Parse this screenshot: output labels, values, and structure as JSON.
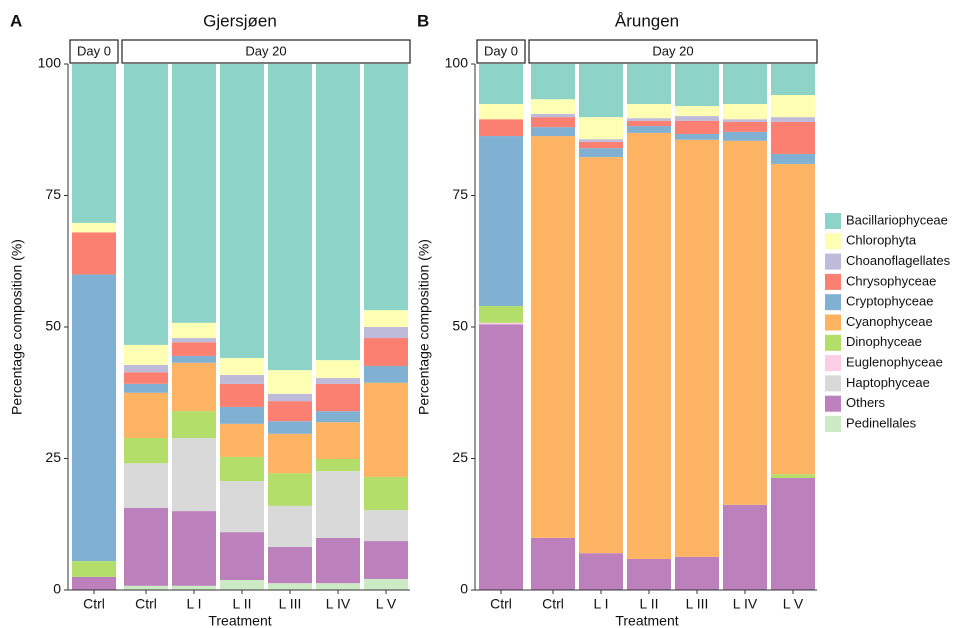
{
  "chart_data": [
    {
      "type": "bar",
      "stacked": true,
      "panel": "A",
      "title": "Gjersjøen",
      "xlabel": "Treatment",
      "ylabel": "Percentage composition (%)",
      "categories": [
        "Ctrl",
        "Ctrl",
        "L I",
        "L II",
        "L III",
        "L IV",
        "L V"
      ],
      "facets": [
        {
          "label": "Day 0",
          "count": 1
        },
        {
          "label": "Day 20",
          "count": 6
        }
      ],
      "ylim": [
        0,
        100
      ],
      "yticks": [
        0,
        25,
        50,
        75,
        100
      ],
      "legend": "none",
      "series": [
        {
          "name": "Bacillariophyceae",
          "color": "#8dd3c7",
          "values": [
            30.2,
            53.4,
            49.2,
            55.9,
            58.2,
            56.3,
            46.8
          ]
        },
        {
          "name": "Chlorophyta",
          "color": "#ffffb3",
          "values": [
            1.8,
            3.8,
            2.9,
            3.2,
            4.5,
            3.4,
            3.2
          ]
        },
        {
          "name": "Choanoflagellates",
          "color": "#bebada",
          "values": [
            0,
            1.4,
            0.8,
            1.7,
            1.4,
            1.1,
            2.1
          ]
        },
        {
          "name": "Chrysophyceae",
          "color": "#fb8072",
          "values": [
            8,
            2.2,
            2.6,
            4.4,
            3.8,
            5.2,
            5.3
          ]
        },
        {
          "name": "Cryptophyceae",
          "color": "#80b1d3",
          "values": [
            54.5,
            1.7,
            1.3,
            3.2,
            2.4,
            2.1,
            3.2
          ]
        },
        {
          "name": "Cyanophyceae",
          "color": "#fdb462",
          "values": [
            0,
            8.6,
            9.2,
            6.3,
            7.5,
            7.0,
            17.9
          ]
        },
        {
          "name": "Dinophyceae",
          "color": "#b3de69",
          "values": [
            3.0,
            4.8,
            5.1,
            4.6,
            6.2,
            2.3,
            6.3
          ]
        },
        {
          "name": "Euglenophyceae",
          "color": "#fccde5",
          "values": [
            0,
            0,
            0,
            0,
            0,
            0,
            0
          ]
        },
        {
          "name": "Haptophyceae",
          "color": "#d9d9d9",
          "values": [
            0,
            8.5,
            13.9,
            9.7,
            7.8,
            12.7,
            5.9
          ]
        },
        {
          "name": "Others",
          "color": "#bc80bd",
          "values": [
            2.5,
            14.8,
            14.2,
            9.1,
            6.9,
            8.6,
            7.2
          ]
        },
        {
          "name": "Pedinellales",
          "color": "#ccebc5",
          "values": [
            0,
            0.8,
            0.8,
            1.9,
            1.3,
            1.3,
            2.1
          ]
        }
      ]
    },
    {
      "type": "bar",
      "stacked": true,
      "panel": "B",
      "title": "Årungen",
      "xlabel": "Treatment",
      "ylabel": "Percentage composition (%)",
      "categories": [
        "Ctrl",
        "Ctrl",
        "L I",
        "L II",
        "L III",
        "L IV",
        "L V"
      ],
      "facets": [
        {
          "label": "Day 0",
          "count": 1
        },
        {
          "label": "Day 20",
          "count": 6
        }
      ],
      "ylim": [
        0,
        100
      ],
      "yticks": [
        0,
        25,
        50,
        75,
        100
      ],
      "legend": "right",
      "series": [
        {
          "name": "Bacillariophyceae",
          "color": "#8dd3c7",
          "values": [
            7.6,
            6.7,
            10.1,
            7.6,
            8.0,
            7.6,
            5.9
          ]
        },
        {
          "name": "Chlorophyta",
          "color": "#ffffb3",
          "values": [
            2.9,
            2.8,
            4.2,
            2.7,
            1.9,
            2.9,
            4.2
          ]
        },
        {
          "name": "Choanoflagellates",
          "color": "#bebada",
          "values": [
            0,
            0.6,
            0.5,
            0.5,
            0.9,
            0.5,
            0.9
          ]
        },
        {
          "name": "Chrysophyceae",
          "color": "#fb8072",
          "values": [
            3.2,
            1.9,
            1.2,
            1.0,
            2.5,
            1.9,
            6.1
          ]
        },
        {
          "name": "Cryptophyceae",
          "color": "#80b1d3",
          "values": [
            32.3,
            1.7,
            1.7,
            1.3,
            1.1,
            1.7,
            1.9
          ]
        },
        {
          "name": "Cyanophyceae",
          "color": "#fdb462",
          "values": [
            0,
            76.4,
            75.3,
            81.0,
            79.3,
            69.2,
            59.0
          ]
        },
        {
          "name": "Dinophyceae",
          "color": "#b3de69",
          "values": [
            3.2,
            0,
            0,
            0,
            0,
            0,
            0.7
          ]
        },
        {
          "name": "Euglenophyceae",
          "color": "#fccde5",
          "values": [
            0.3,
            0,
            0,
            0,
            0,
            0,
            0
          ]
        },
        {
          "name": "Haptophyceae",
          "color": "#d9d9d9",
          "values": [
            0,
            0,
            0,
            0,
            0,
            0,
            0
          ]
        },
        {
          "name": "Others",
          "color": "#bc80bd",
          "values": [
            50.5,
            9.9,
            7.0,
            5.9,
            6.3,
            16.2,
            21.3
          ]
        },
        {
          "name": "Pedinellales",
          "color": "#ccebc5",
          "values": [
            0,
            0,
            0,
            0,
            0,
            0,
            0
          ]
        }
      ]
    }
  ]
}
